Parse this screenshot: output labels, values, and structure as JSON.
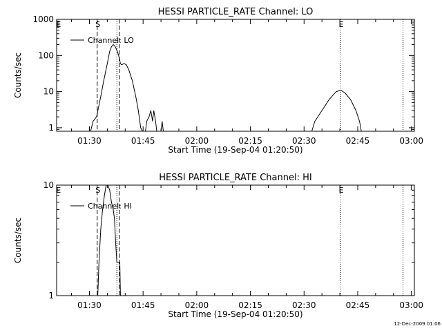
{
  "footer_text": "12-Dec-2009 01:06",
  "chart_data": [
    {
      "type": "line",
      "title": "HESSI PARTICLE_RATE Channel: LO",
      "xlabel": "Start Time (19-Sep-04 01:20:50)",
      "ylabel": "Counts/sec",
      "yscale": "log",
      "xlim": [
        "01:20:50",
        "03:00:50"
      ],
      "ylim": [
        0.8,
        1000
      ],
      "x_ticks": [
        "01:30",
        "01:45",
        "02:00",
        "02:15",
        "02:30",
        "02:45",
        "03:00"
      ],
      "y_ticks": [
        {
          "value": 1,
          "label": "1"
        },
        {
          "value": 10,
          "label": "10"
        },
        {
          "value": 100,
          "label": "100"
        },
        {
          "value": 1000,
          "label": "1000"
        }
      ],
      "legend": {
        "label": "Channel: LO",
        "position": "top-left"
      },
      "markers": [
        {
          "label": "E",
          "time": "01:21:10",
          "style": "none"
        },
        {
          "label": "S",
          "time": "01:32:10",
          "style": "dashed"
        },
        {
          "label": "",
          "time": "01:37:40",
          "style": "dotted"
        },
        {
          "label": "",
          "time": "01:38:20",
          "style": "dashed"
        },
        {
          "label": "E",
          "time": "02:40:10",
          "style": "dotted"
        },
        {
          "label": "",
          "time": "02:57:40",
          "style": "dotted"
        }
      ],
      "series": [
        {
          "segments": [
            [
              [
                "01:30:20",
                0.8
              ],
              [
                "01:31:00",
                1.5
              ],
              [
                "01:32:00",
                2
              ],
              [
                "01:33:00",
                6
              ],
              [
                "01:34:00",
                20
              ],
              [
                "01:35:00",
                60
              ],
              [
                "01:35:40",
                130
              ],
              [
                "01:36:10",
                175
              ],
              [
                "01:36:40",
                200
              ],
              [
                "01:37:10",
                180
              ],
              [
                "01:37:40",
                140
              ],
              [
                "01:38:10",
                100
              ],
              [
                "01:38:40",
                60
              ],
              [
                "01:39:00",
                55
              ],
              [
                "01:39:40",
                60
              ],
              [
                "01:40:20",
                55
              ],
              [
                "01:41:00",
                40
              ],
              [
                "01:42:00",
                20
              ],
              [
                "01:43:00",
                7
              ],
              [
                "01:43:40",
                3
              ],
              [
                "01:44:20",
                1
              ],
              [
                "01:44:50",
                0.8
              ]
            ],
            [
              [
                "01:45:40",
                0.8
              ],
              [
                "01:46:00",
                1.5
              ],
              [
                "01:46:40",
                2
              ],
              [
                "01:47:10",
                3
              ],
              [
                "01:47:40",
                1.5
              ],
              [
                "01:48:00",
                3
              ],
              [
                "01:48:30",
                1.5
              ],
              [
                "01:48:50",
                0.8
              ]
            ],
            [
              [
                "01:50:00",
                0.8
              ],
              [
                "01:50:20",
                1.5
              ],
              [
                "01:50:40",
                0.8
              ]
            ],
            [
              [
                "02:32:10",
                0.8
              ],
              [
                "02:33:00",
                1.5
              ],
              [
                "02:35:00",
                3
              ],
              [
                "02:37:00",
                6
              ],
              [
                "02:39:00",
                10
              ],
              [
                "02:40:20",
                11
              ],
              [
                "02:41:30",
                9
              ],
              [
                "02:43:00",
                6
              ],
              [
                "02:44:30",
                3
              ],
              [
                "02:45:30",
                1.5
              ],
              [
                "02:46:00",
                0.8
              ]
            ]
          ]
        }
      ]
    },
    {
      "type": "line",
      "title": "HESSI PARTICLE_RATE Channel: HI",
      "xlabel": "Start Time (19-Sep-04 01:20:50)",
      "ylabel": "Counts/sec",
      "yscale": "log",
      "xlim": [
        "01:20:50",
        "03:00:50"
      ],
      "ylim": [
        1,
        10
      ],
      "x_ticks": [
        "01:30",
        "01:45",
        "02:00",
        "02:15",
        "02:30",
        "02:45",
        "03:00"
      ],
      "y_ticks": [
        {
          "value": 1,
          "label": "1"
        },
        {
          "value": 10,
          "label": "10"
        }
      ],
      "legend": {
        "label": "Channel: HI",
        "position": "top-left"
      },
      "markers": [
        {
          "label": "E",
          "time": "01:21:10",
          "style": "none"
        },
        {
          "label": "S",
          "time": "01:32:10",
          "style": "dashed"
        },
        {
          "label": "",
          "time": "01:37:40",
          "style": "dotted"
        },
        {
          "label": "",
          "time": "01:38:20",
          "style": "dashed"
        },
        {
          "label": "E",
          "time": "02:40:10",
          "style": "dotted"
        },
        {
          "label": "",
          "time": "02:57:40",
          "style": "dotted"
        }
      ],
      "series": [
        {
          "segments": [
            [
              [
                "01:32:20",
                1
              ],
              [
                "01:32:40",
                2
              ],
              [
                "01:33:10",
                4
              ],
              [
                "01:33:40",
                6
              ],
              [
                "01:34:10",
                8
              ],
              [
                "01:34:40",
                10
              ],
              [
                "01:35:10",
                10.5
              ],
              [
                "01:35:40",
                9
              ],
              [
                "01:36:10",
                7
              ],
              [
                "01:36:40",
                6
              ],
              [
                "01:37:00",
                5
              ],
              [
                "01:37:20",
                3
              ],
              [
                "01:37:40",
                2
              ],
              [
                "01:38:30",
                2
              ],
              [
                "01:38:40",
                1
              ]
            ]
          ]
        }
      ]
    }
  ]
}
